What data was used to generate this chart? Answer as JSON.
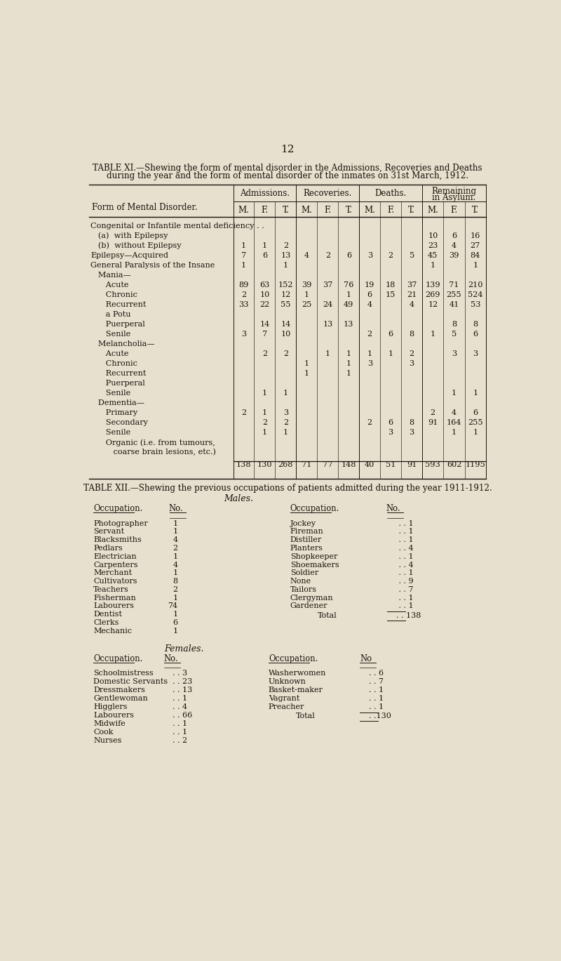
{
  "bg_color": "#e8e0cf",
  "text_color": "#1a1209",
  "page_number": "12",
  "table11_title1": "TABLE XI.—Shewing the form of mental disorder in the Admissions, Recoveries and Deaths",
  "table11_title2": "during the year and the form of mental disorder of the inmates on 31st March, 1912.",
  "table11_rows": [
    {
      "label": "Congenital or Infantile mental deficiency . .",
      "indent": 0,
      "data": [
        "",
        "",
        "",
        "",
        "",
        "",
        "",
        "",
        "",
        "",
        "",
        ""
      ],
      "bold": false
    },
    {
      "label": "   (a)  with Epilepsy",
      "indent": 0,
      "data": [
        "",
        "",
        "",
        "",
        "",
        "",
        "",
        "",
        "",
        "10",
        "6",
        "16"
      ],
      "bold": false
    },
    {
      "label": "   (b)  without Epilepsy",
      "indent": 0,
      "data": [
        "1",
        "1",
        "2",
        "",
        "",
        "",
        "",
        "",
        "",
        "23",
        "4",
        "27"
      ],
      "bold": false
    },
    {
      "label": "Epilepsy—Acquired",
      "indent": 0,
      "data": [
        "7",
        "6",
        "13",
        "4",
        "2",
        "6",
        "3",
        "2",
        "5",
        "45",
        "39",
        "84"
      ],
      "bold": false
    },
    {
      "label": "General Paralysis of the Insane",
      "indent": 0,
      "data": [
        "1",
        "",
        "1",
        "",
        "",
        "",
        "",
        "",
        "",
        "1",
        "",
        "1"
      ],
      "bold": false
    },
    {
      "label": "   Mania—",
      "indent": 0,
      "data": [
        "",
        "",
        "",
        "",
        "",
        "",
        "",
        "",
        "",
        "",
        "",
        ""
      ],
      "bold": false
    },
    {
      "label": "      Acute",
      "indent": 0,
      "data": [
        "89",
        "63",
        "152",
        "39",
        "37",
        "76",
        "19",
        "18",
        "37",
        "139",
        "71",
        "210"
      ],
      "bold": false
    },
    {
      "label": "      Chronic",
      "indent": 0,
      "data": [
        "2",
        "10",
        "12",
        "1",
        "",
        "1",
        "6",
        "15",
        "21",
        "269",
        "255",
        "524"
      ],
      "bold": false
    },
    {
      "label": "      Recurrent",
      "indent": 0,
      "data": [
        "33",
        "22",
        "55",
        "25",
        "24",
        "49",
        "4",
        "",
        "4",
        "12",
        "41",
        "53"
      ],
      "bold": false
    },
    {
      "label": "      a Potu",
      "indent": 0,
      "data": [
        "",
        "",
        "",
        "",
        "",
        "",
        "",
        "",
        "",
        "",
        "",
        ""
      ],
      "bold": false
    },
    {
      "label": "      Puerperal",
      "indent": 0,
      "data": [
        "",
        "14",
        "14",
        "",
        "13",
        "13",
        "",
        "",
        "",
        "",
        "8",
        "8"
      ],
      "bold": false
    },
    {
      "label": "      Senile",
      "indent": 0,
      "data": [
        "3",
        "7",
        "10",
        "",
        "",
        "",
        "2",
        "6",
        "8",
        "1",
        "5",
        "6"
      ],
      "bold": false
    },
    {
      "label": "   Melancholia—",
      "indent": 0,
      "data": [
        "",
        "",
        "",
        "",
        "",
        "",
        "",
        "",
        "",
        "",
        "",
        ""
      ],
      "bold": false
    },
    {
      "label": "      Acute",
      "indent": 0,
      "data": [
        "",
        "2",
        "2",
        "",
        "1",
        "1",
        "1",
        "1",
        "2",
        "",
        "3",
        "3"
      ],
      "bold": false
    },
    {
      "label": "      Chronic",
      "indent": 0,
      "data": [
        "",
        "",
        "",
        "1",
        "",
        "1",
        "3",
        "",
        "3",
        "",
        "",
        ""
      ],
      "bold": false
    },
    {
      "label": "      Recurrent",
      "indent": 0,
      "data": [
        "",
        "",
        "",
        "1",
        "",
        "1",
        "",
        "",
        "",
        "",
        "",
        ""
      ],
      "bold": false
    },
    {
      "label": "      Puerperal",
      "indent": 0,
      "data": [
        "",
        "",
        "",
        "",
        "",
        "",
        "",
        "",
        "",
        "",
        "",
        ""
      ],
      "bold": false
    },
    {
      "label": "      Senile",
      "indent": 0,
      "data": [
        "",
        "1",
        "1",
        "",
        "",
        "",
        "",
        "",
        "",
        "",
        "1",
        "1"
      ],
      "bold": false
    },
    {
      "label": "   Dementia—",
      "indent": 0,
      "data": [
        "",
        "",
        "",
        "",
        "",
        "",
        "",
        "",
        "",
        "",
        "",
        ""
      ],
      "bold": false
    },
    {
      "label": "      Primary",
      "indent": 0,
      "data": [
        "2",
        "1",
        "3",
        "",
        "",
        "",
        "",
        "",
        "",
        "2",
        "4",
        "6"
      ],
      "bold": false
    },
    {
      "label": "      Secondary",
      "indent": 0,
      "data": [
        "",
        "2",
        "2",
        "",
        "",
        "",
        "2",
        "6",
        "8",
        "91",
        "164",
        "255"
      ],
      "bold": false
    },
    {
      "label": "      Senile",
      "indent": 0,
      "data": [
        "",
        "1",
        "1",
        "",
        "",
        "",
        "",
        "3",
        "3",
        "",
        "1",
        "1"
      ],
      "bold": false
    },
    {
      "label": "      Organic (i.e. from tumours,",
      "indent": 0,
      "data": [
        "",
        "",
        "",
        "",
        "",
        "",
        "",
        "",
        "",
        "",
        "",
        ""
      ],
      "bold": false
    },
    {
      "label": "         coarse brain lesions, etc.)",
      "indent": 0,
      "data": [
        "",
        "",
        "",
        "",
        "",
        "",
        "",
        "",
        "",
        "",
        "",
        ""
      ],
      "bold": false
    }
  ],
  "table11_totals": [
    "138",
    "130",
    "268",
    "71",
    "77",
    "148",
    "40",
    "51",
    "91",
    "593",
    "602",
    "1195"
  ],
  "table12_title": "TABLE XII.—Shewing the previous occupations of patients admitted during the year 1911-1912.",
  "males_heading": "Males.",
  "females_heading": "Females.",
  "males_col1": [
    [
      "Photographer",
      "1"
    ],
    [
      "Servant",
      "1"
    ],
    [
      "Blacksmiths",
      "4"
    ],
    [
      "Pedlars",
      "2"
    ],
    [
      "Electrician",
      "1"
    ],
    [
      "Carpenters",
      "4"
    ],
    [
      "Merchant",
      "1"
    ],
    [
      "Cultivators",
      "8"
    ],
    [
      "Teachers",
      "2"
    ],
    [
      "Fisherman",
      "1"
    ],
    [
      "Labourers",
      "74"
    ],
    [
      "Dentist",
      "1"
    ],
    [
      "Clerks",
      "6"
    ],
    [
      "Mechanic",
      "1"
    ]
  ],
  "males_col2": [
    [
      "Jockey",
      "1"
    ],
    [
      "Fireman",
      "1"
    ],
    [
      "Distiller",
      "1"
    ],
    [
      "Planters",
      "4"
    ],
    [
      "Shopkeeper",
      "1"
    ],
    [
      "Shoemakers",
      "4"
    ],
    [
      "Soldier",
      "1"
    ],
    [
      "None",
      "9"
    ],
    [
      "Tailors",
      "7"
    ],
    [
      "Clergyman",
      "1"
    ],
    [
      "Gardener",
      "1"
    ]
  ],
  "males_total": "138",
  "females_col1": [
    [
      "Schoolmistress",
      "3"
    ],
    [
      "Domestic Servants",
      "23"
    ],
    [
      "Dressmakers",
      "13"
    ],
    [
      "Gentlewoman",
      "1"
    ],
    [
      "Higglers",
      "4"
    ],
    [
      "Labourers",
      "66"
    ],
    [
      "Midwife",
      "1"
    ],
    [
      "Cook",
      "1"
    ],
    [
      "Nurses",
      "2"
    ]
  ],
  "females_col2": [
    [
      "Washerwomen",
      "6"
    ],
    [
      "Unknown",
      "7"
    ],
    [
      "Basket-maker",
      "1"
    ],
    [
      "Vagrant",
      "1"
    ],
    [
      "Preacher",
      "1"
    ]
  ],
  "females_total": "130"
}
